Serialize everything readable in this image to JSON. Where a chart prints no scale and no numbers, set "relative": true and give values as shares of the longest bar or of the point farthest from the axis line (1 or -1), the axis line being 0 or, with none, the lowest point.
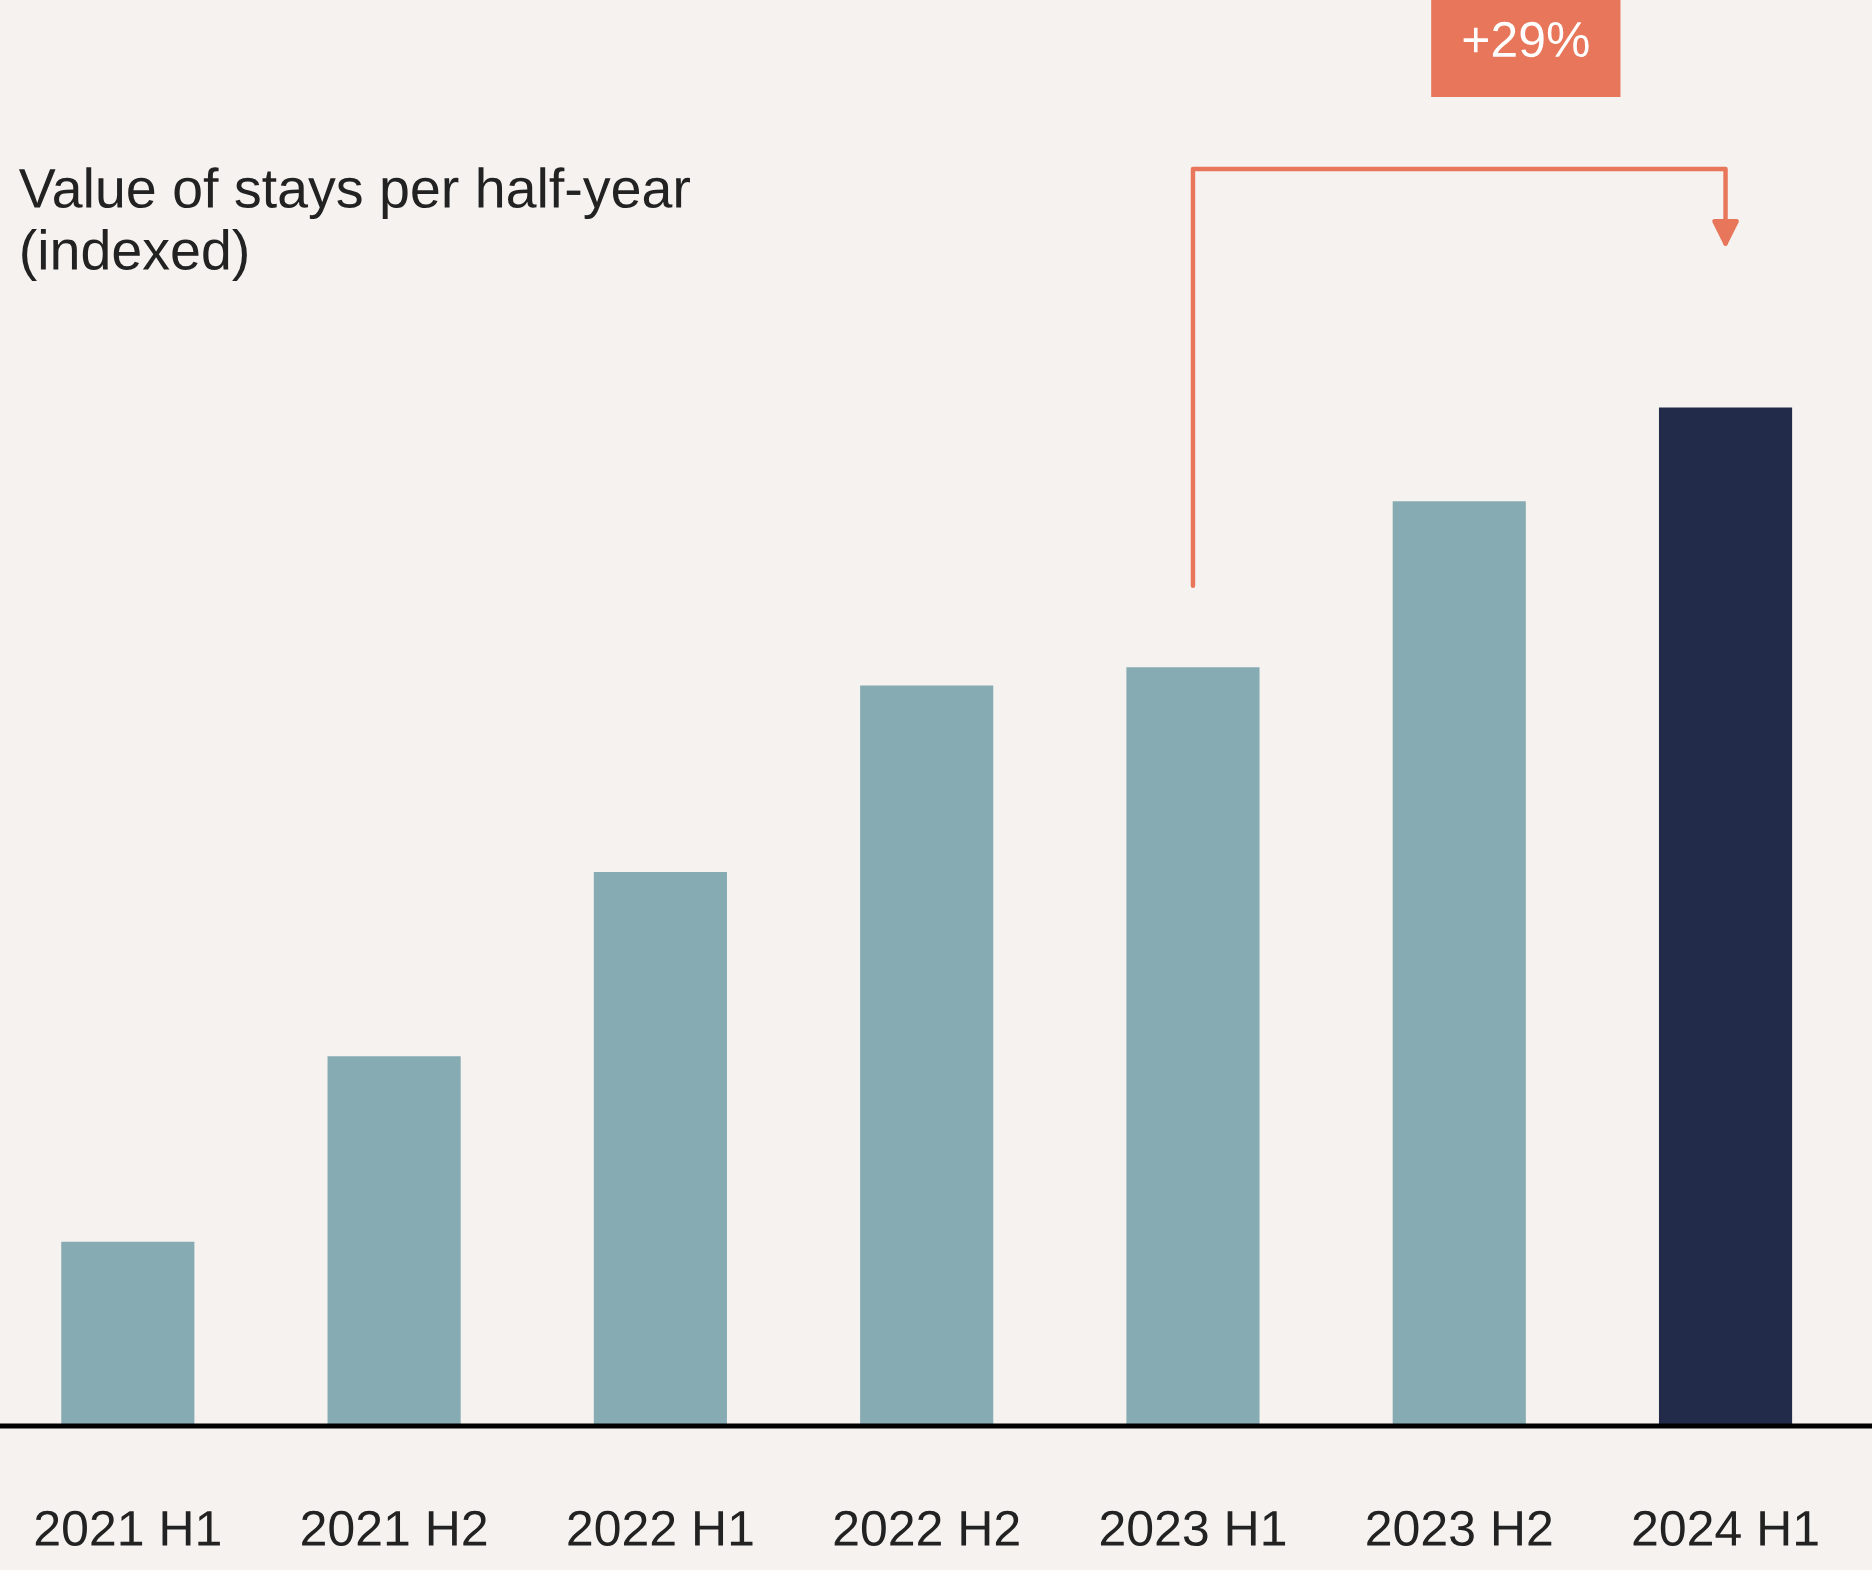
{
  "chart_data": {
    "type": "bar",
    "title": "Value of stays per half-year\n(indexed)",
    "relative": true,
    "categories": [
      "2021 H1",
      "2021 H2",
      "2022 H1",
      "2022 H2",
      "2023 H1",
      "2023 H2",
      "2024 H1"
    ],
    "values": [
      0.181,
      0.363,
      0.544,
      0.727,
      0.745,
      0.908,
      1
    ],
    "colors": [
      "#86abb2",
      "#86abb2",
      "#86abb2",
      "#86abb2",
      "#86abb2",
      "#86abb2",
      "#232b4b"
    ],
    "annotations": [
      "+29%"
    ],
    "grid": false
  }
}
